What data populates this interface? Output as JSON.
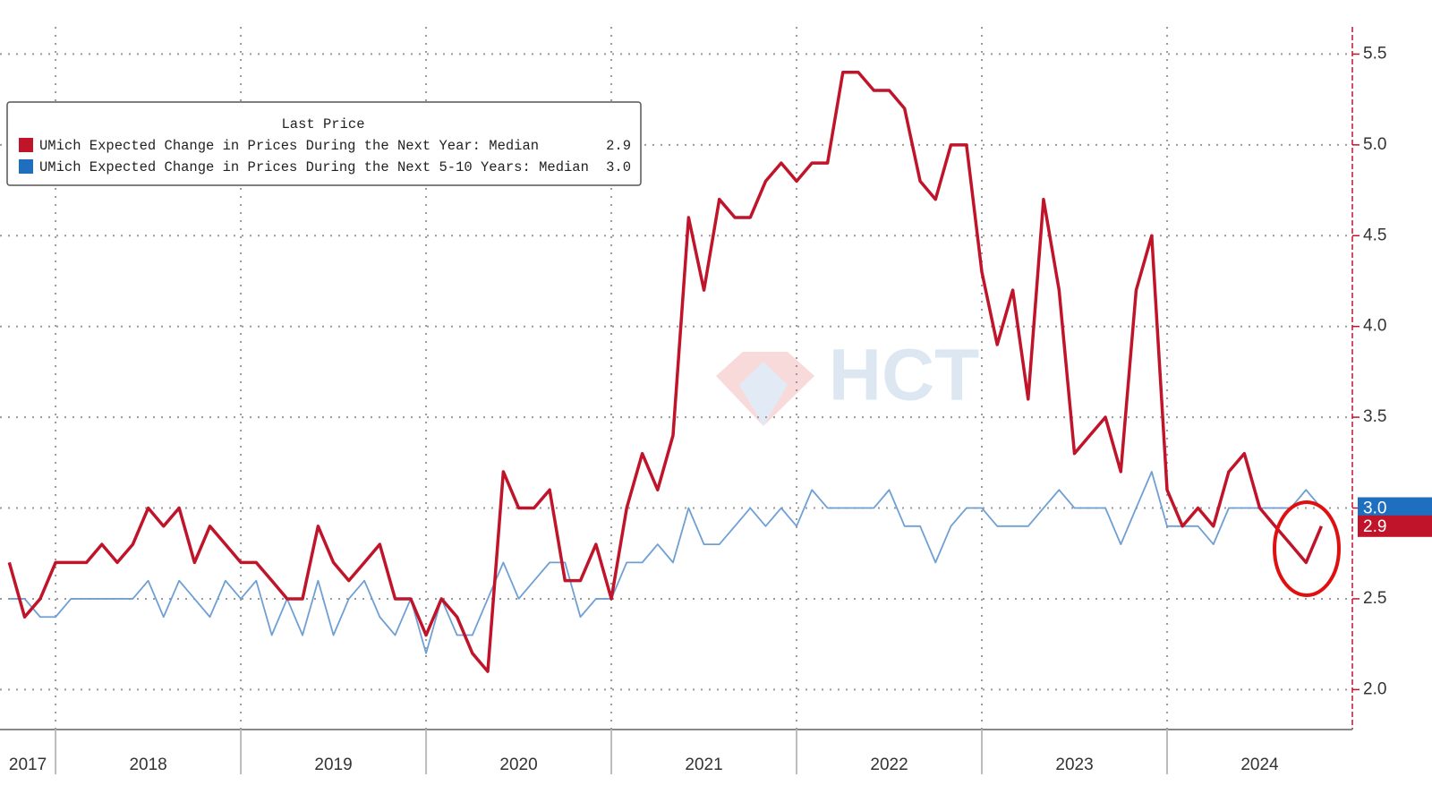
{
  "chart_data": {
    "type": "line",
    "legend_title": "Last Price",
    "watermark": "HCT",
    "x": [
      2017.75,
      2017.833,
      2017.917,
      2018,
      2018.083,
      2018.167,
      2018.25,
      2018.333,
      2018.417,
      2018.5,
      2018.583,
      2018.667,
      2018.75,
      2018.833,
      2018.917,
      2019,
      2019.083,
      2019.167,
      2019.25,
      2019.333,
      2019.417,
      2019.5,
      2019.583,
      2019.667,
      2019.75,
      2019.833,
      2019.917,
      2020,
      2020.083,
      2020.167,
      2020.25,
      2020.333,
      2020.417,
      2020.5,
      2020.583,
      2020.667,
      2020.75,
      2020.833,
      2020.917,
      2021,
      2021.083,
      2021.167,
      2021.25,
      2021.333,
      2021.417,
      2021.5,
      2021.583,
      2021.667,
      2021.75,
      2021.833,
      2021.917,
      2022,
      2022.083,
      2022.167,
      2022.25,
      2022.333,
      2022.417,
      2022.5,
      2022.583,
      2022.667,
      2022.75,
      2022.833,
      2022.917,
      2023,
      2023.083,
      2023.167,
      2023.25,
      2023.333,
      2023.417,
      2023.5,
      2023.583,
      2023.667,
      2023.75,
      2023.833,
      2023.917,
      2024,
      2024.083,
      2024.167,
      2024.25,
      2024.333,
      2024.417,
      2024.5,
      2024.583,
      2024.667,
      2024.75,
      2024.833
    ],
    "series": [
      {
        "name": "UMich Expected Change in Prices During the Next Year: Median",
        "legend_value": "2.9",
        "color": "#c0142a",
        "values": [
          2.7,
          2.4,
          2.5,
          2.7,
          2.7,
          2.7,
          2.8,
          2.7,
          2.8,
          3.0,
          2.9,
          3.0,
          2.7,
          2.9,
          2.8,
          2.7,
          2.7,
          2.6,
          2.5,
          2.5,
          2.9,
          2.7,
          2.6,
          2.7,
          2.8,
          2.5,
          2.5,
          2.3,
          2.5,
          2.4,
          2.2,
          2.1,
          3.2,
          3.0,
          3.0,
          3.1,
          2.6,
          2.6,
          2.8,
          2.5,
          3.0,
          3.3,
          3.1,
          3.4,
          4.6,
          4.2,
          4.7,
          4.6,
          4.6,
          4.8,
          4.9,
          4.8,
          4.9,
          4.9,
          5.4,
          5.4,
          5.3,
          5.3,
          5.2,
          4.8,
          4.7,
          5.0,
          5.0,
          4.3,
          3.9,
          4.2,
          3.6,
          4.7,
          4.2,
          3.3,
          3.4,
          3.5,
          3.2,
          4.2,
          4.5,
          3.1,
          2.9,
          3.0,
          2.9,
          3.2,
          3.3,
          3.0,
          2.9,
          2.8,
          2.7,
          2.9
        ]
      },
      {
        "name": "UMich Expected Change in Prices During the Next 5-10 Years: Median",
        "legend_value": "3.0",
        "color": "#6f9fd3",
        "legend_color": "#1f6fc0",
        "values": [
          2.5,
          2.5,
          2.4,
          2.4,
          2.5,
          2.5,
          2.5,
          2.5,
          2.5,
          2.6,
          2.4,
          2.6,
          2.5,
          2.4,
          2.6,
          2.5,
          2.6,
          2.3,
          2.5,
          2.3,
          2.6,
          2.3,
          2.5,
          2.6,
          2.4,
          2.3,
          2.5,
          2.2,
          2.5,
          2.3,
          2.3,
          2.5,
          2.7,
          2.5,
          2.6,
          2.7,
          2.7,
          2.4,
          2.5,
          2.5,
          2.7,
          2.7,
          2.8,
          2.7,
          3.0,
          2.8,
          2.8,
          2.9,
          3.0,
          2.9,
          3.0,
          2.9,
          3.1,
          3.0,
          3.0,
          3.0,
          3.0,
          3.1,
          2.9,
          2.9,
          2.7,
          2.9,
          3.0,
          3.0,
          2.9,
          2.9,
          2.9,
          3.0,
          3.1,
          3.0,
          3.0,
          3.0,
          2.8,
          3.0,
          3.2,
          2.9,
          2.9,
          2.9,
          2.8,
          3.0,
          3.0,
          3.0,
          3.0,
          3.0,
          3.1,
          3.0
        ]
      }
    ],
    "xlim": [
      2017.7,
      2025
    ],
    "xticks": [
      {
        "value": 2017,
        "label": "2017"
      },
      {
        "value": 2018,
        "label": "2018"
      },
      {
        "value": 2019,
        "label": "2019"
      },
      {
        "value": 2020,
        "label": "2020"
      },
      {
        "value": 2021,
        "label": "2021"
      },
      {
        "value": 2022,
        "label": "2022"
      },
      {
        "value": 2023,
        "label": "2023"
      },
      {
        "value": 2024,
        "label": "2024"
      }
    ],
    "ylim": [
      1.78,
      5.65
    ],
    "yticks": [
      {
        "value": 2,
        "label": "2.0"
      },
      2.5,
      {
        "value": 3,
        "label": "3.0"
      },
      3.5,
      {
        "value": 4,
        "label": "4.0"
      },
      4.5,
      {
        "value": 5,
        "label": "5.0"
      },
      5.5
    ],
    "y_axis_side": "right",
    "grid": true
  }
}
